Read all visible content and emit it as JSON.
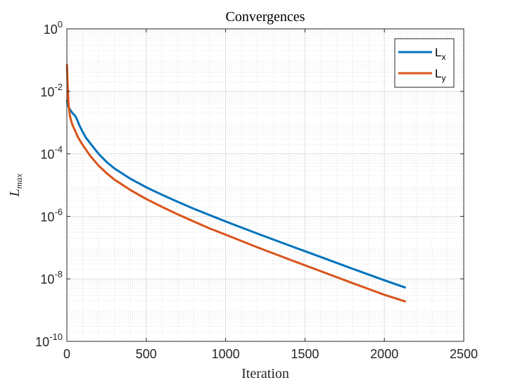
{
  "chart_data": {
    "type": "line",
    "title": "Convergences",
    "xlabel": "Iteration",
    "ylabel": {
      "main": "L",
      "sub": "max"
    },
    "xlim": [
      0,
      2500
    ],
    "ylim": [
      1e-10,
      1
    ],
    "yscale": "log",
    "grid": true,
    "minor_grid": true,
    "legend_position": "top-right",
    "x_ticks": [
      "0",
      "500",
      "1000",
      "1500",
      "2000",
      "2500"
    ],
    "y_ticks": [
      {
        "base": "10",
        "exp": "0"
      },
      {
        "base": "10",
        "exp": "-2"
      },
      {
        "base": "10",
        "exp": "-4"
      },
      {
        "base": "10",
        "exp": "-6"
      },
      {
        "base": "10",
        "exp": "-8"
      },
      {
        "base": "10",
        "exp": "-10"
      }
    ],
    "series": [
      {
        "name": "L",
        "name_sub": "x",
        "color": "#0072BD",
        "x": [
          1,
          5,
          10,
          20,
          30,
          40,
          50,
          60,
          80,
          100,
          120,
          150,
          200,
          250,
          300,
          400,
          500,
          600,
          700,
          800,
          900,
          1000,
          1200,
          1400,
          1600,
          1800,
          2000,
          2130
        ],
        "y": [
          0.005,
          0.004,
          0.0033,
          0.0026,
          0.0022,
          0.0019,
          0.0017,
          0.0014,
          0.0008,
          0.0005,
          0.00033,
          0.00021,
          0.0001,
          5.5e-05,
          3.4e-05,
          1.6e-05,
          8.5e-06,
          4.9e-06,
          2.9e-06,
          1.75e-06,
          1.1e-06,
          6.9e-07,
          2.8e-07,
          1.18e-07,
          5e-08,
          2.1e-08,
          9e-09,
          5.3e-09
        ]
      },
      {
        "name": "L",
        "name_sub": "y",
        "color": "#D95319",
        "x": [
          1,
          3,
          6,
          10,
          15,
          20,
          30,
          40,
          50,
          70,
          100,
          150,
          200,
          250,
          300,
          400,
          500,
          600,
          700,
          800,
          900,
          1000,
          1200,
          1400,
          1600,
          1800,
          2000,
          2130
        ],
        "y": [
          0.07,
          0.03,
          0.012,
          0.0045,
          0.0024,
          0.0016,
          0.001,
          0.00075,
          0.00058,
          0.00034,
          0.00019,
          8.3e-05,
          4.2e-05,
          2.4e-05,
          1.5e-05,
          7e-06,
          3.6e-06,
          2e-06,
          1.15e-06,
          6.8e-07,
          4.1e-07,
          2.6e-07,
          1.02e-07,
          4.2e-08,
          1.75e-08,
          7.3e-09,
          3.1e-09,
          1.9e-09
        ]
      }
    ]
  }
}
